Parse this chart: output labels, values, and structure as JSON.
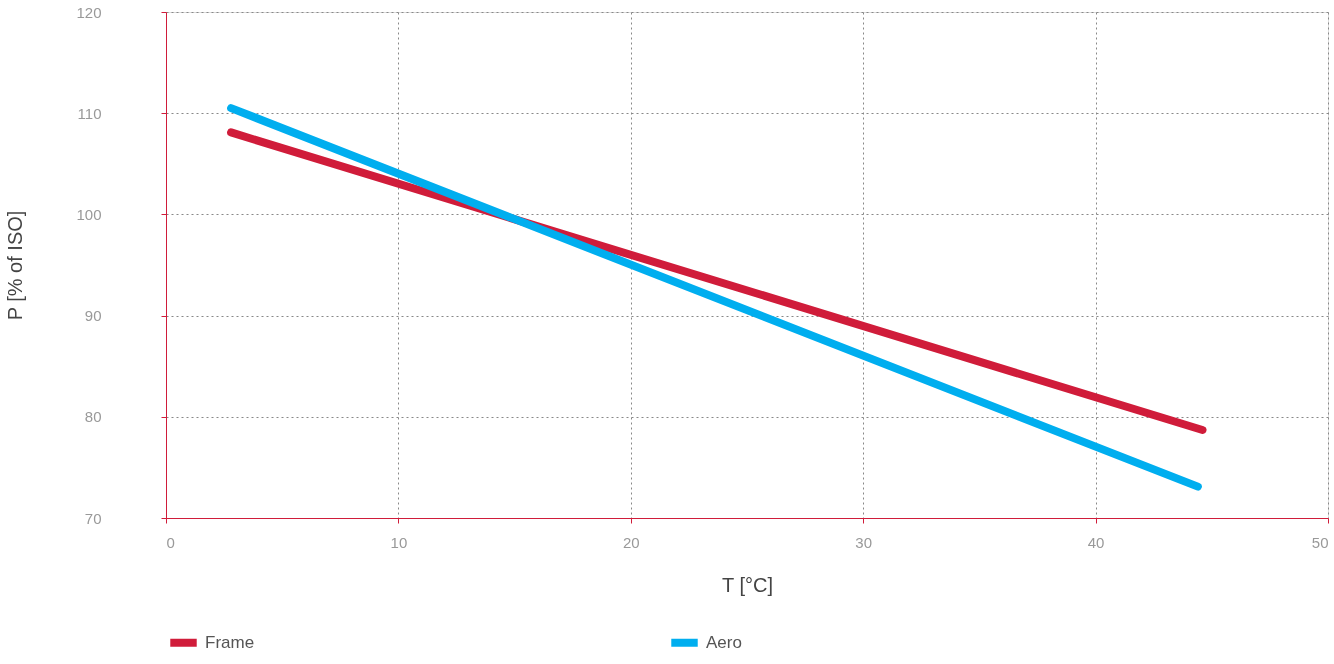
{
  "chart_data": {
    "type": "line",
    "xlabel": "T [°C]",
    "ylabel": "P [% of ISO]",
    "xlim": [
      0,
      50
    ],
    "xticks": [
      0,
      10,
      20,
      30,
      40,
      50
    ],
    "ylim": [
      70,
      120
    ],
    "yticks": [
      70,
      80,
      90,
      100,
      110,
      120
    ],
    "grid": true,
    "legend": "bottom",
    "marker": "none",
    "line_style": "solid",
    "series": [
      {
        "name": "Frame",
        "color": "#d01c3a",
        "x": [
          2.8,
          44.6
        ],
        "values": [
          108.1,
          78.7
        ]
      },
      {
        "name": "Aero",
        "color": "#00aeef",
        "x": [
          2.8,
          44.4
        ],
        "values": [
          110.5,
          73.1
        ]
      }
    ]
  }
}
